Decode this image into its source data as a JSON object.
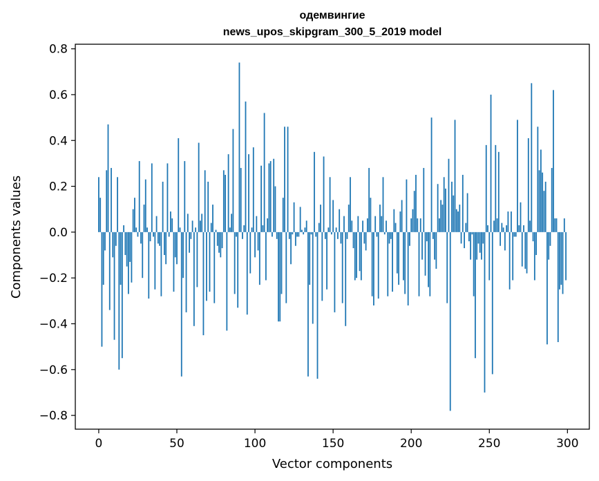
{
  "chart_data": {
    "type": "bar",
    "title_line1": "одемвингие",
    "title_line2": "news_upos_skipgram_300_5_2019 model",
    "xlabel": "Vector components",
    "ylabel": "Components values",
    "xlim": [
      -15,
      314
    ],
    "ylim": [
      -0.86,
      0.82
    ],
    "xticks": [
      0,
      50,
      100,
      150,
      200,
      250,
      300
    ],
    "xtick_labels": [
      "0",
      "50",
      "100",
      "150",
      "200",
      "250",
      "300"
    ],
    "yticks": [
      -0.8,
      -0.6,
      -0.4,
      -0.2,
      0.0,
      0.2,
      0.4,
      0.6,
      0.8
    ],
    "ytick_labels": [
      "−0.8",
      "−0.6",
      "−0.4",
      "−0.2",
      "0.0",
      "0.2",
      "0.4",
      "0.6",
      "0.8"
    ],
    "bar_color": "#1f77b4",
    "grid": false,
    "x": "0..299",
    "values": [
      0.24,
      0.15,
      -0.5,
      -0.23,
      -0.08,
      0.27,
      0.47,
      -0.34,
      0.28,
      -0.11,
      -0.47,
      -0.06,
      0.24,
      -0.6,
      -0.23,
      -0.55,
      0.03,
      -0.1,
      -0.15,
      -0.27,
      -0.13,
      -0.22,
      0.1,
      0.15,
      0.02,
      -0.02,
      0.31,
      -0.05,
      -0.2,
      0.12,
      0.23,
      0.02,
      -0.29,
      -0.04,
      0.3,
      -0.02,
      -0.25,
      0.07,
      -0.05,
      -0.06,
      -0.28,
      0.22,
      -0.1,
      -0.14,
      0.3,
      -0.02,
      0.09,
      0.06,
      -0.26,
      -0.11,
      -0.14,
      0.41,
      0.02,
      -0.63,
      -0.2,
      0.31,
      -0.35,
      0.08,
      -0.09,
      -0.03,
      0.05,
      -0.41,
      0.02,
      -0.24,
      0.39,
      0.05,
      0.08,
      -0.45,
      0.27,
      -0.3,
      0.22,
      -0.26,
      0.04,
      0.12,
      -0.31,
      0.01,
      -0.06,
      -0.09,
      -0.11,
      -0.07,
      0.27,
      0.25,
      -0.43,
      0.34,
      0.02,
      0.08,
      0.45,
      -0.27,
      -0.02,
      -0.33,
      0.74,
      0.28,
      -0.03,
      0.03,
      0.57,
      -0.36,
      0.34,
      -0.18,
      0.02,
      0.37,
      -0.11,
      0.07,
      -0.08,
      -0.23,
      0.29,
      0.03,
      0.52,
      -0.21,
      0.06,
      0.3,
      0.31,
      -0.02,
      0.32,
      0.2,
      -0.03,
      -0.39,
      -0.39,
      -0.27,
      0.15,
      0.46,
      -0.31,
      0.46,
      -0.03,
      -0.14,
      -0.01,
      0.13,
      -0.06,
      -0.02,
      -0.02,
      0.11,
      0.01,
      -0.01,
      0.02,
      0.05,
      -0.63,
      -0.23,
      -0.01,
      -0.4,
      0.35,
      -0.02,
      -0.64,
      0.04,
      0.12,
      -0.3,
      0.33,
      -0.03,
      -0.25,
      0.02,
      0.24,
      -0.01,
      0.14,
      -0.35,
      0.02,
      -0.03,
      0.1,
      -0.05,
      -0.31,
      0.07,
      -0.41,
      -0.03,
      0.12,
      0.24,
      0.05,
      -0.07,
      -0.21,
      -0.2,
      0.07,
      -0.17,
      -0.21,
      0.05,
      -0.05,
      -0.08,
      0.06,
      0.28,
      0.15,
      -0.28,
      -0.32,
      0.07,
      -0.02,
      -0.29,
      0.12,
      0.07,
      0.24,
      -0.01,
      0.05,
      -0.28,
      -0.05,
      -0.03,
      -0.26,
      0.1,
      0.04,
      -0.18,
      -0.23,
      0.09,
      0.14,
      -0.21,
      -0.27,
      0.23,
      -0.32,
      -0.06,
      0.06,
      0.1,
      0.18,
      0.25,
      0.06,
      -0.28,
      0.06,
      -0.12,
      0.28,
      -0.19,
      -0.04,
      -0.24,
      -0.28,
      0.5,
      -0.03,
      -0.12,
      -0.16,
      0.21,
      0.06,
      0.14,
      0.12,
      0.24,
      0.19,
      -0.31,
      0.32,
      -0.78,
      0.22,
      0.16,
      0.49,
      0.1,
      0.09,
      0.12,
      -0.05,
      0.25,
      -0.07,
      0.04,
      0.17,
      -0.04,
      -0.12,
      -0.01,
      -0.28,
      -0.55,
      -0.12,
      -0.05,
      -0.09,
      -0.12,
      -0.05,
      -0.7,
      0.38,
      0.03,
      -0.21,
      0.6,
      -0.62,
      0.05,
      0.38,
      0.06,
      0.35,
      -0.06,
      0.04,
      0.02,
      -0.08,
      0.03,
      0.09,
      -0.25,
      0.09,
      -0.21,
      -0.02,
      -0.02,
      0.49,
      0.03,
      0.13,
      -0.15,
      0.03,
      -0.16,
      -0.18,
      0.41,
      0.05,
      0.65,
      -0.04,
      -0.21,
      -0.1,
      0.46,
      0.27,
      0.36,
      0.26,
      0.18,
      0.22,
      -0.49,
      -0.12,
      -0.06,
      0.28,
      0.62,
      0.06,
      0.06,
      -0.48,
      -0.25,
      -0.23,
      -0.27,
      0.06,
      -0.21
    ]
  }
}
